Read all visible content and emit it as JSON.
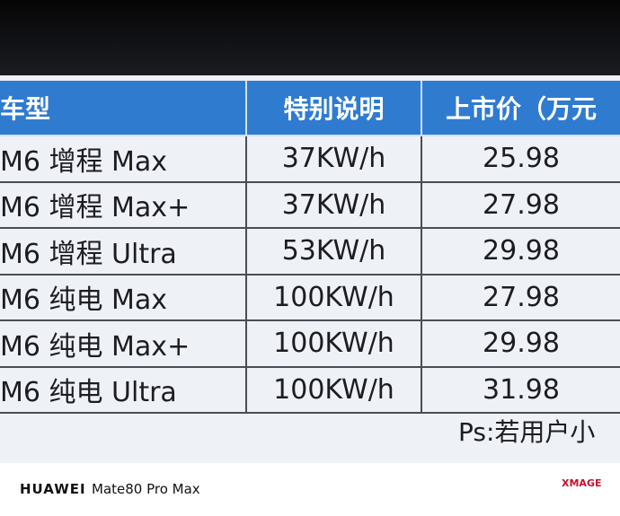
{
  "table": {
    "header": [
      "车型",
      "特别说明",
      "上市价（万元"
    ],
    "rows": [
      [
        "M6 增程 Max",
        "37KW/h",
        "25.98"
      ],
      [
        "M6 增程 Max+",
        "37KW/h",
        "27.98"
      ],
      [
        "M6 增程 Ultra",
        "53KW/h",
        "29.98"
      ],
      [
        "M6 纯电 Max",
        "100KW/h",
        "27.98"
      ],
      [
        "M6 纯电 Max+",
        "100KW/h",
        "29.98"
      ],
      [
        "M6 纯电 Ultra",
        "100KW/h",
        "31.98"
      ]
    ],
    "note": "Ps:若用户小"
  },
  "watermark": {
    "brand": "HUAWEI",
    "model": "Mate80 Pro Max",
    "logo": "XMAGE"
  }
}
